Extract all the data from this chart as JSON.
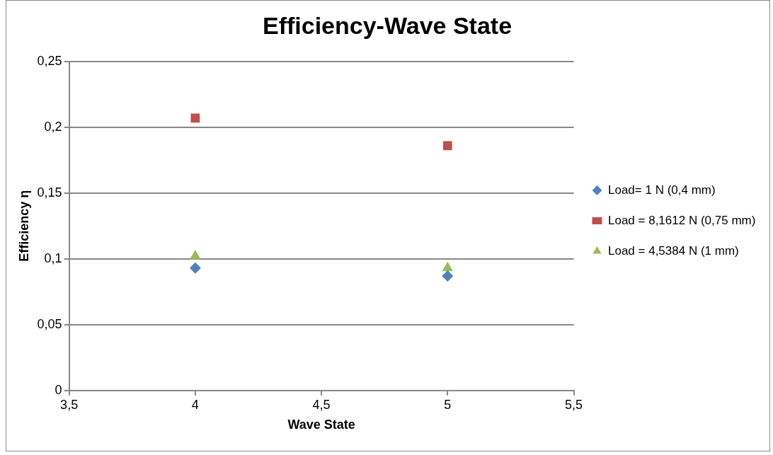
{
  "chart_data": {
    "type": "scatter",
    "title": "Efficiency-Wave State",
    "xlabel": "Wave State",
    "ylabel": "Efficiency η",
    "x": [
      4,
      5
    ],
    "series": [
      {
        "name": "Load= 1 N (0,4 mm)",
        "color": "#4f81bd",
        "marker": "diamond",
        "values": [
          0.093,
          0.087
        ]
      },
      {
        "name": "Load = 8,1612 N (0,75 mm)",
        "color": "#c0504d",
        "marker": "square",
        "values": [
          0.207,
          0.186
        ]
      },
      {
        "name": "Load = 4,5384 N (1 mm)",
        "color": "#9bbb59",
        "marker": "triangle",
        "values": [
          0.102,
          0.093
        ]
      }
    ],
    "xlim": [
      3.5,
      5.5
    ],
    "xticks": [
      {
        "value": 3.5,
        "label": "3,5"
      },
      4,
      {
        "value": 4.5,
        "label": "4,5"
      },
      5,
      {
        "value": 5.5,
        "label": "5,5"
      }
    ],
    "ylim": [
      0,
      0.25
    ],
    "yticks": [
      0,
      {
        "value": 0.05,
        "label": "0,05"
      },
      {
        "value": 0.1,
        "label": "0,1"
      },
      {
        "value": 0.15,
        "label": "0,15"
      },
      {
        "value": 0.2,
        "label": "0,2"
      },
      {
        "value": 0.25,
        "label": "0,25"
      }
    ],
    "grid": "y",
    "legend": "right"
  }
}
